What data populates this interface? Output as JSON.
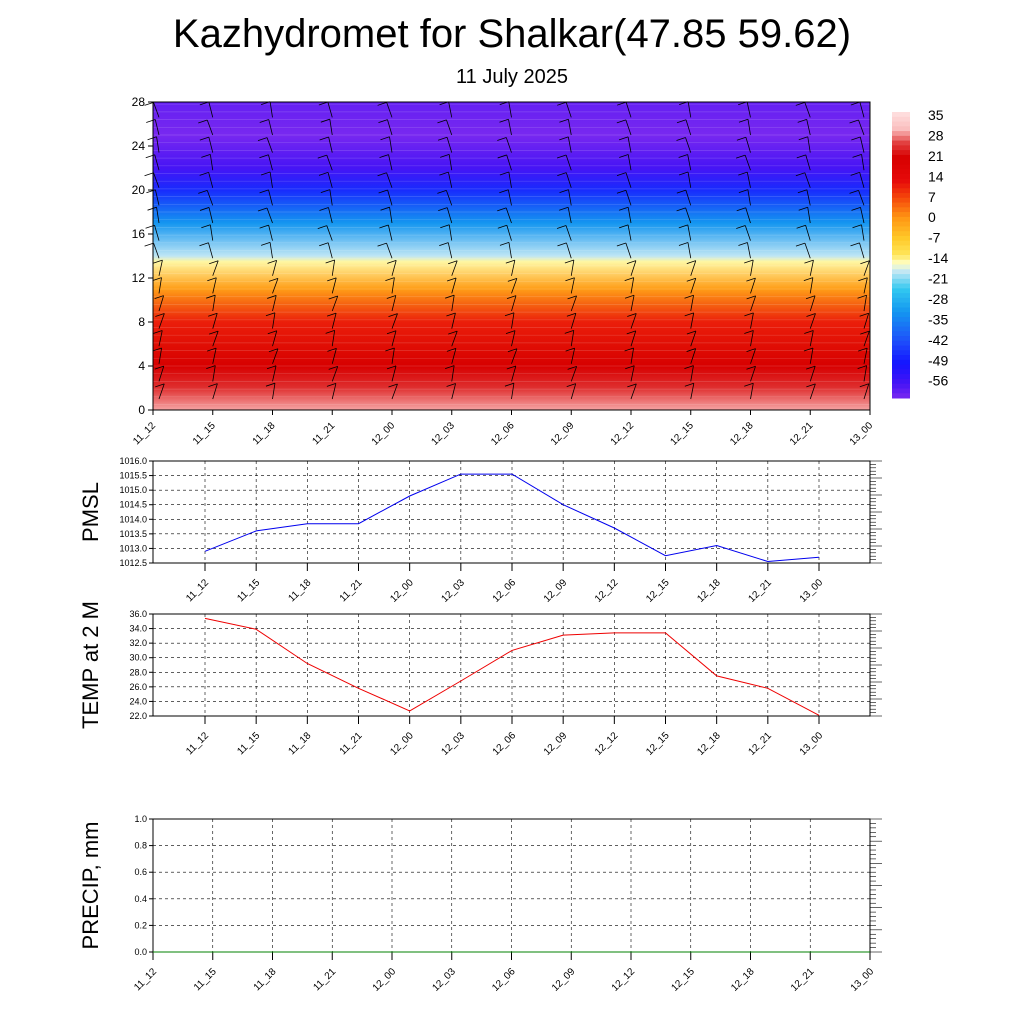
{
  "header": {
    "title": "Kazhydromet for Shalkar(47.85 59.62)",
    "subtitle": "11 July 2025"
  },
  "colors": {
    "pmsl_line": "#0000ee",
    "temp_line": "#ee0000",
    "precip_line": "#008000",
    "wind_barb": "#000000",
    "grid": "#000000"
  },
  "chart_data": [
    {
      "type": "heatmap",
      "panel": "cross-section",
      "x": [
        "11_12",
        "11_15",
        "11_18",
        "11_21",
        "12_00",
        "12_03",
        "12_06",
        "12_09",
        "12_12",
        "12_15",
        "12_18",
        "12_21",
        "13_00"
      ],
      "y_ticks": [
        0,
        4,
        8,
        12,
        16,
        20,
        24,
        28
      ],
      "ylim": [
        0,
        28
      ],
      "colorbar_labels": [
        "35",
        "28",
        "21",
        "14",
        "7",
        "0",
        "-7",
        "-14",
        "-21",
        "-28",
        "-35",
        "-42",
        "-49",
        "-56"
      ],
      "colorbar_range": [
        -60,
        40
      ],
      "temperature_by_level": [
        {
          "level": 0,
          "value": 33
        },
        {
          "level": 2,
          "value": 28
        },
        {
          "level": 4,
          "value": 24
        },
        {
          "level": 8,
          "value": 14
        },
        {
          "level": 11,
          "value": 2
        },
        {
          "level": 13.5,
          "value": -12
        },
        {
          "level": 14,
          "value": -16
        },
        {
          "level": 17,
          "value": -30
        },
        {
          "level": 20,
          "value": -45
        },
        {
          "level": 22,
          "value": -55
        },
        {
          "level": 25,
          "value": -60
        },
        {
          "level": 28,
          "value": -58
        }
      ],
      "wind_barbs": "present"
    },
    {
      "type": "line",
      "ylabel": "PMSL",
      "x": [
        "11_12",
        "11_15",
        "11_18",
        "11_21",
        "12_00",
        "12_03",
        "12_06",
        "12_09",
        "12_12",
        "12_15",
        "12_18",
        "12_21",
        "13_00"
      ],
      "series": [
        {
          "values": [
            1012.9,
            1013.6,
            1013.85,
            1013.85,
            1014.8,
            1015.55,
            1015.55,
            1014.5,
            1013.7,
            1012.75,
            1013.1,
            1012.55,
            1012.7
          ]
        }
      ],
      "y_ticks": [
        "1016.0",
        "1015.5",
        "1015.0",
        "1014.5",
        "1014.0",
        "1013.5",
        "1013.0",
        "1012.5"
      ],
      "ylim": [
        1012.5,
        1016.0
      ],
      "grid": true
    },
    {
      "type": "line",
      "ylabel": "TEMP at 2 M",
      "x": [
        "11_12",
        "11_15",
        "11_18",
        "11_21",
        "12_00",
        "12_03",
        "12_06",
        "12_09",
        "12_12",
        "12_15",
        "12_18",
        "12_21",
        "13_00"
      ],
      "series": [
        {
          "values": [
            35.4,
            33.9,
            29.2,
            25.8,
            22.7,
            26.8,
            31.0,
            33.1,
            33.4,
            33.4,
            27.5,
            25.8,
            22.1
          ]
        }
      ],
      "y_ticks": [
        "36.0",
        "34.0",
        "32.0",
        "30.0",
        "28.0",
        "26.0",
        "24.0",
        "22.0"
      ],
      "ylim": [
        22.0,
        36.0
      ],
      "grid": true
    },
    {
      "type": "line",
      "ylabel": "PRECIP, mm",
      "x": [
        "11_12",
        "11_15",
        "11_18",
        "11_21",
        "12_00",
        "12_03",
        "12_06",
        "12_09",
        "12_12",
        "12_15",
        "12_18",
        "12_21",
        "13_00"
      ],
      "series": [
        {
          "values": [
            0,
            0,
            0,
            0,
            0,
            0,
            0,
            0,
            0,
            0,
            0,
            0,
            0
          ]
        }
      ],
      "y_ticks": [
        "1.0",
        "0.8",
        "0.6",
        "0.4",
        "0.2",
        "0.0"
      ],
      "ylim": [
        0.0,
        1.0
      ],
      "grid": true
    }
  ]
}
